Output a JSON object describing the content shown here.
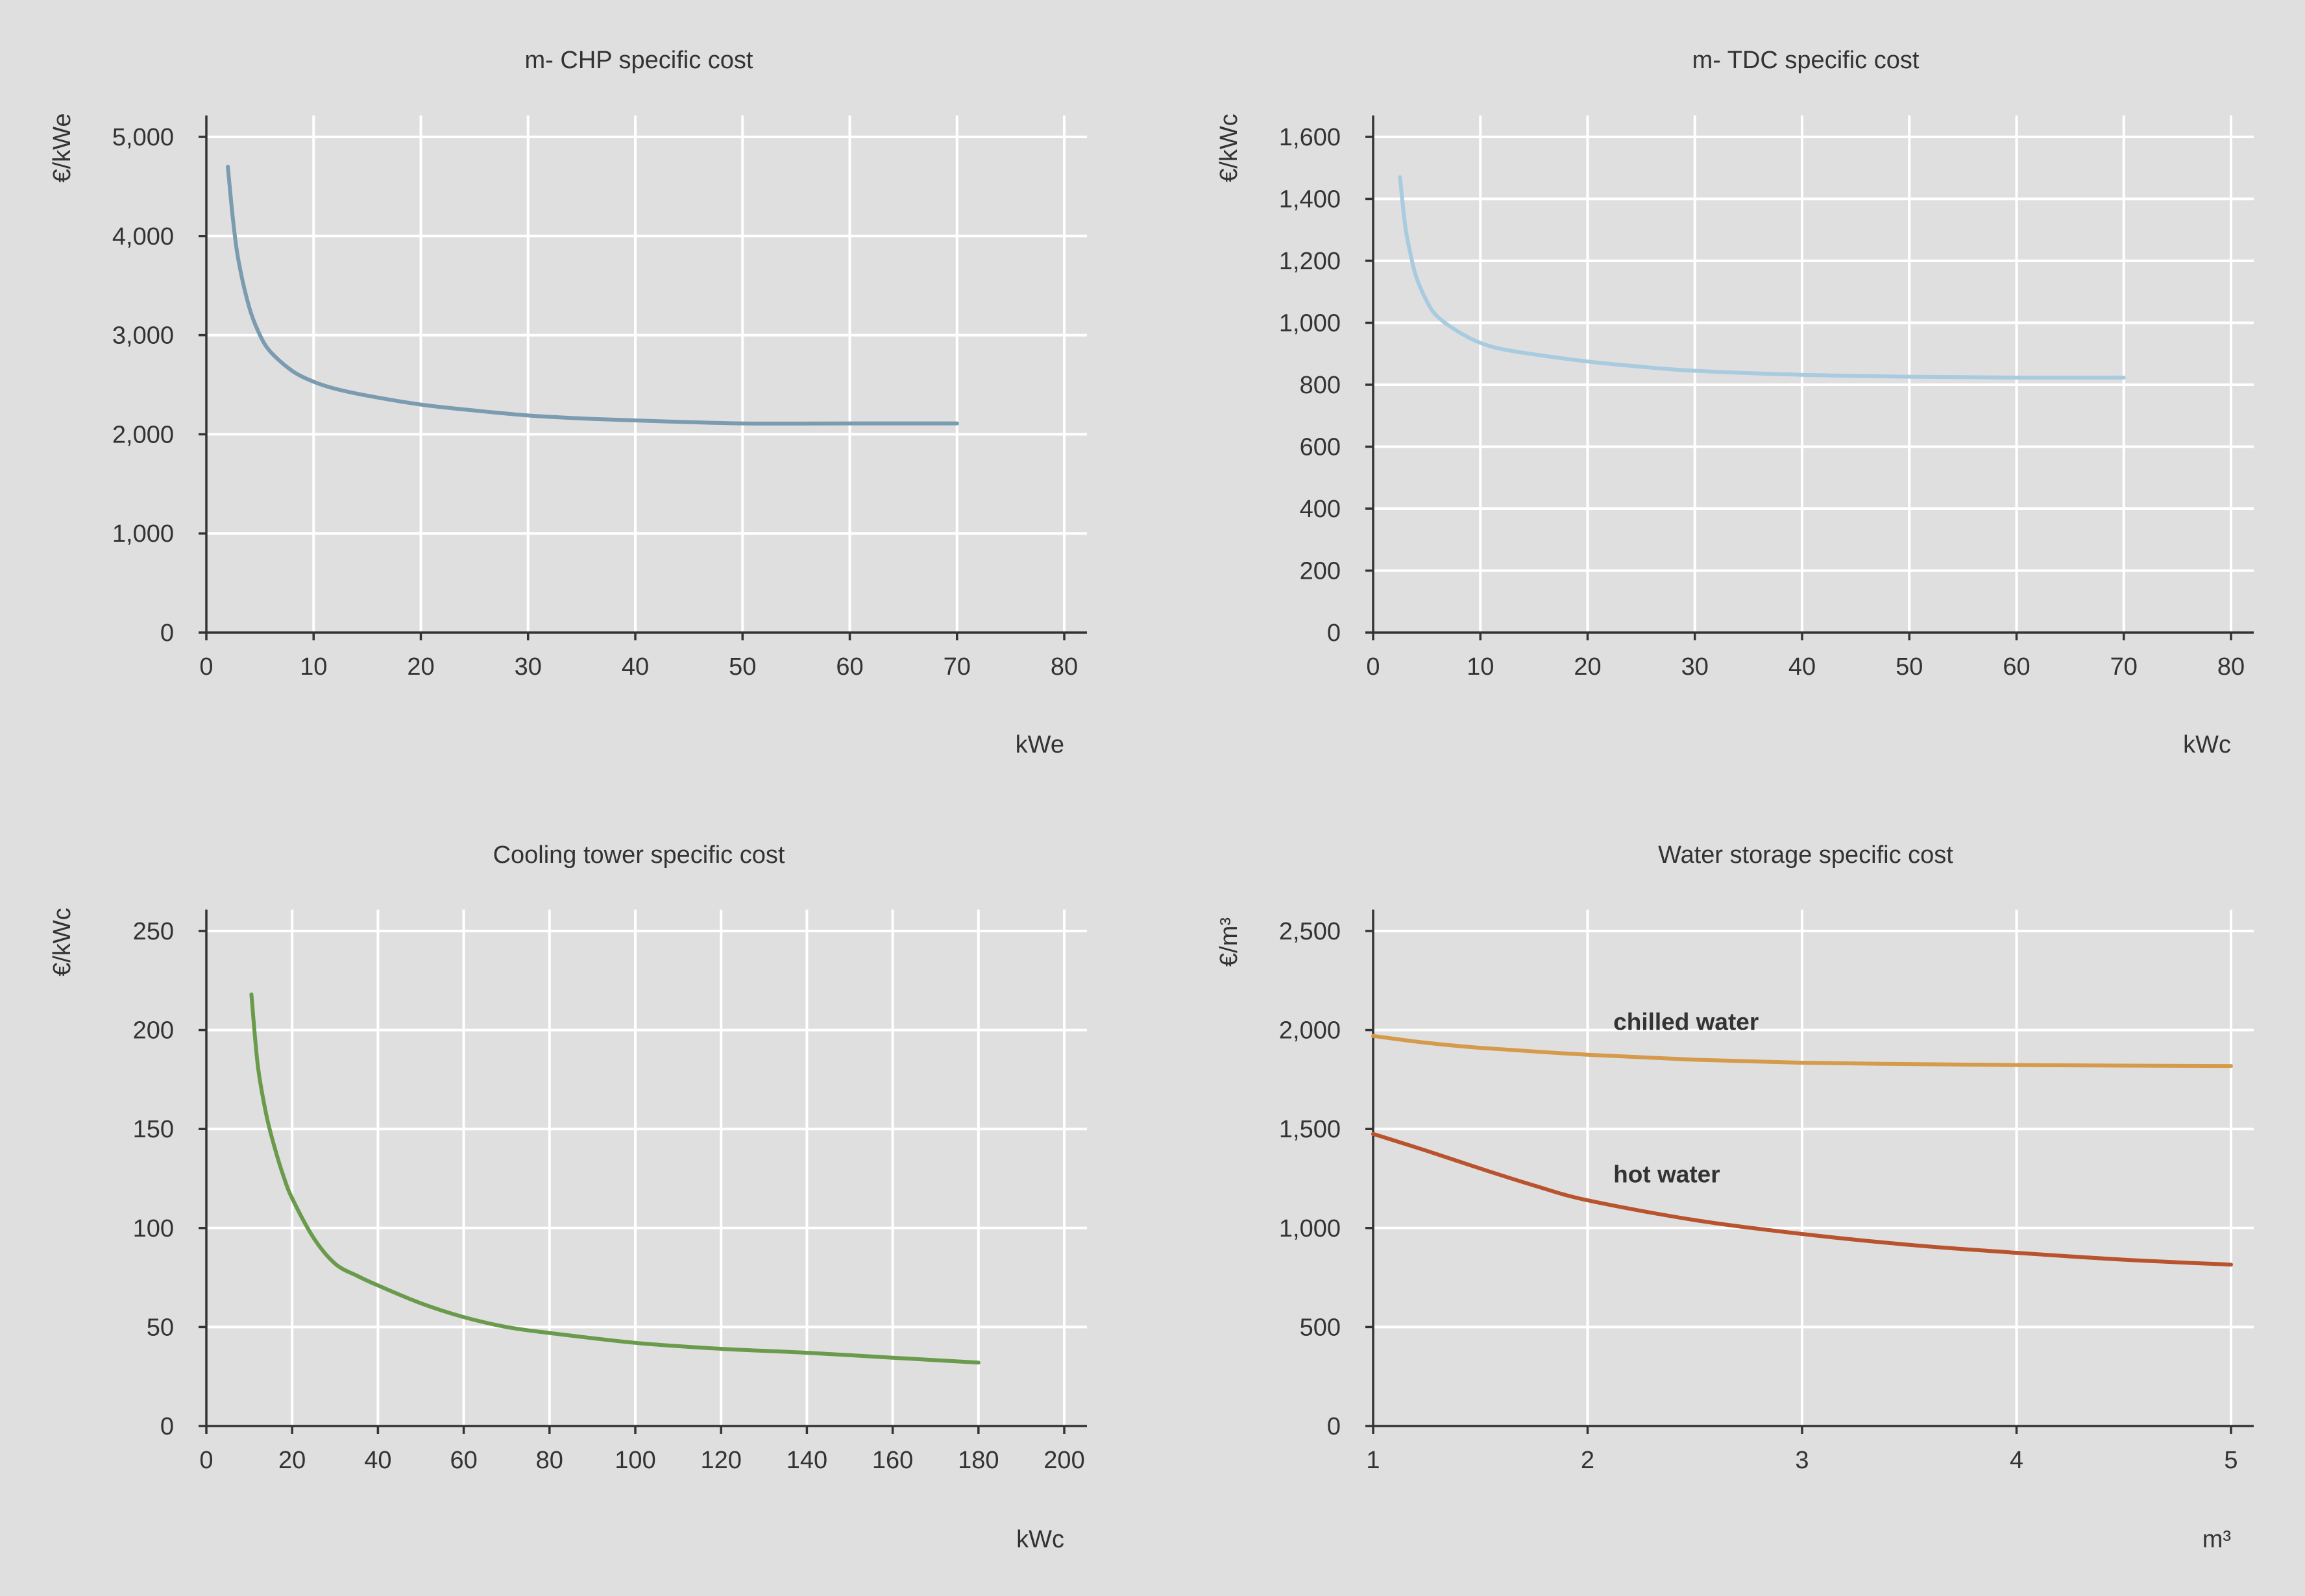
{
  "chart_data": [
    {
      "type": "line",
      "title": "m- CHP specific cost",
      "xlabel": "kWe",
      "ylabel": "€/kWe",
      "xlim": [
        0,
        80
      ],
      "ylim": [
        0,
        5000
      ],
      "xticks": [
        0,
        10,
        20,
        30,
        40,
        50,
        60,
        70,
        80
      ],
      "yticks": [
        0,
        1000,
        2000,
        3000,
        4000,
        5000
      ],
      "xtick_labels": [
        "0",
        "10",
        "20",
        "30",
        "40",
        "50",
        "60",
        "70",
        "80"
      ],
      "ytick_labels": [
        "0",
        "1,000",
        "2,000",
        "3,000",
        "4,000",
        "5,000"
      ],
      "grid": true,
      "series": [
        {
          "name": "m-CHP",
          "color": "#7a9bb0",
          "label": "",
          "x": [
            2,
            2.5,
            3,
            4,
            5,
            6,
            8,
            10,
            12,
            15,
            20,
            25,
            30,
            35,
            40,
            50,
            60,
            70
          ],
          "y": [
            4700,
            4150,
            3750,
            3280,
            3000,
            2830,
            2640,
            2530,
            2460,
            2390,
            2300,
            2240,
            2190,
            2160,
            2140,
            2110,
            2110,
            2110
          ]
        }
      ]
    },
    {
      "type": "line",
      "title": "m- TDC specific cost",
      "xlabel": "kWc",
      "ylabel": "€/kWc",
      "xlim": [
        0,
        80
      ],
      "ylim": [
        0,
        1600
      ],
      "xticks": [
        0,
        10,
        20,
        30,
        40,
        50,
        60,
        70,
        80
      ],
      "yticks": [
        0,
        200,
        400,
        600,
        800,
        1000,
        1200,
        1400,
        1600
      ],
      "xtick_labels": [
        "0",
        "10",
        "20",
        "30",
        "40",
        "50",
        "60",
        "70",
        "80"
      ],
      "ytick_labels": [
        "0",
        "200",
        "400",
        "600",
        "800",
        "1,000",
        "1,200",
        "1,400",
        "1,600"
      ],
      "grid": true,
      "series": [
        {
          "name": "m-TDC",
          "color": "#a8cbe0",
          "label": "",
          "x": [
            2.5,
            3,
            3.5,
            4,
            5,
            6,
            8,
            10,
            12,
            15,
            20,
            25,
            30,
            40,
            50,
            60,
            70
          ],
          "y": [
            1470,
            1310,
            1220,
            1150,
            1070,
            1020,
            970,
            935,
            915,
            898,
            875,
            858,
            845,
            832,
            826,
            823,
            823
          ]
        }
      ]
    },
    {
      "type": "line",
      "title": "Cooling tower specific cost",
      "xlabel": "kWc",
      "ylabel": "€/kWc",
      "xlim": [
        0,
        200
      ],
      "ylim": [
        0,
        250
      ],
      "xticks": [
        0,
        20,
        40,
        60,
        80,
        100,
        120,
        140,
        160,
        180,
        200
      ],
      "yticks": [
        0,
        50,
        100,
        150,
        200,
        250
      ],
      "xtick_labels": [
        "0",
        "20",
        "40",
        "60",
        "80",
        "100",
        "120",
        "140",
        "160",
        "180",
        "200"
      ],
      "ytick_labels": [
        "0",
        "50",
        "100",
        "150",
        "200",
        "250"
      ],
      "grid": true,
      "series": [
        {
          "name": "Cooling tower",
          "color": "#6a9a4b",
          "label": "",
          "x": [
            10.5,
            12,
            14,
            16,
            18,
            20,
            25,
            30,
            35,
            40,
            50,
            60,
            70,
            80,
            100,
            120,
            140,
            160,
            180
          ],
          "y": [
            218,
            182,
            157,
            140,
            126,
            115,
            95,
            82,
            76,
            71,
            62,
            55,
            50,
            47,
            42,
            39,
            37,
            34.5,
            32
          ]
        }
      ]
    },
    {
      "type": "line",
      "title": "Water storage specific cost",
      "xlabel": "m³",
      "ylabel": "€/m³",
      "xlim": [
        1,
        5
      ],
      "ylim": [
        0,
        2500
      ],
      "xticks": [
        1,
        2,
        3,
        4,
        5
      ],
      "yticks": [
        0,
        500,
        1000,
        1500,
        2000,
        2500
      ],
      "xtick_labels": [
        "1",
        "2",
        "3",
        "4",
        "5"
      ],
      "ytick_labels": [
        "0",
        "500",
        "1,000",
        "1,500",
        "2,000",
        "2,500"
      ],
      "grid": true,
      "series": [
        {
          "name": "chilled water",
          "color": "#d59a4a",
          "label": "chilled water",
          "label_at": [
            2.12,
            2000
          ],
          "x": [
            1,
            1.25,
            1.5,
            2,
            2.5,
            3,
            3.5,
            4,
            4.5,
            5
          ],
          "y": [
            1970,
            1935,
            1910,
            1875,
            1850,
            1835,
            1828,
            1823,
            1820,
            1818
          ]
        },
        {
          "name": "hot water",
          "color": "#b9532d",
          "label": "hot water",
          "label_at": [
            2.12,
            1230
          ],
          "x": [
            1,
            1.25,
            1.5,
            1.75,
            2,
            2.5,
            3,
            3.5,
            4,
            4.5,
            5
          ],
          "y": [
            1475,
            1390,
            1300,
            1215,
            1140,
            1040,
            970,
            915,
            875,
            840,
            815
          ]
        }
      ]
    }
  ]
}
